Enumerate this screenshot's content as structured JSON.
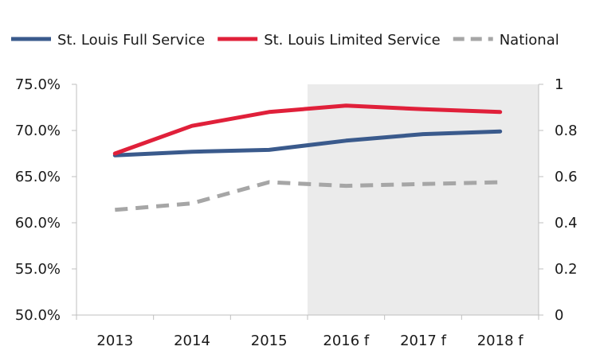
{
  "chart_data": {
    "type": "line",
    "categories": [
      "2013",
      "2014",
      "2015",
      "2016 f",
      "2017 f",
      "2018 f"
    ],
    "forecast_start_category": "2016 f",
    "series": [
      {
        "name": "St. Louis Full Service",
        "axis": "left",
        "values": [
          67.3,
          67.7,
          67.9,
          68.9,
          69.6,
          69.9
        ],
        "color": "#3a5a8c",
        "dash": false
      },
      {
        "name": "St. Louis Limited Service",
        "axis": "left",
        "values": [
          67.5,
          70.5,
          72.0,
          72.7,
          72.3,
          72.0
        ],
        "color": "#e0203a",
        "dash": false
      },
      {
        "name": "National",
        "axis": "left",
        "values": [
          61.4,
          62.1,
          64.4,
          64.0,
          64.2,
          64.4
        ],
        "color": "#a6a6a6",
        "dash": true
      }
    ],
    "y_left": {
      "min": 50,
      "max": 75,
      "step": 5,
      "tick_labels": [
        "50.0%",
        "55.0%",
        "60.0%",
        "65.0%",
        "70.0%",
        "75.0%"
      ]
    },
    "y_right": {
      "min": 0,
      "max": 1,
      "step": 0.2,
      "tick_labels": [
        "0",
        "0.2",
        "0.4",
        "0.6",
        "0.8",
        "1"
      ]
    },
    "legend_position": "top",
    "grid": false,
    "forecast_band_color": "#ebebeb"
  }
}
